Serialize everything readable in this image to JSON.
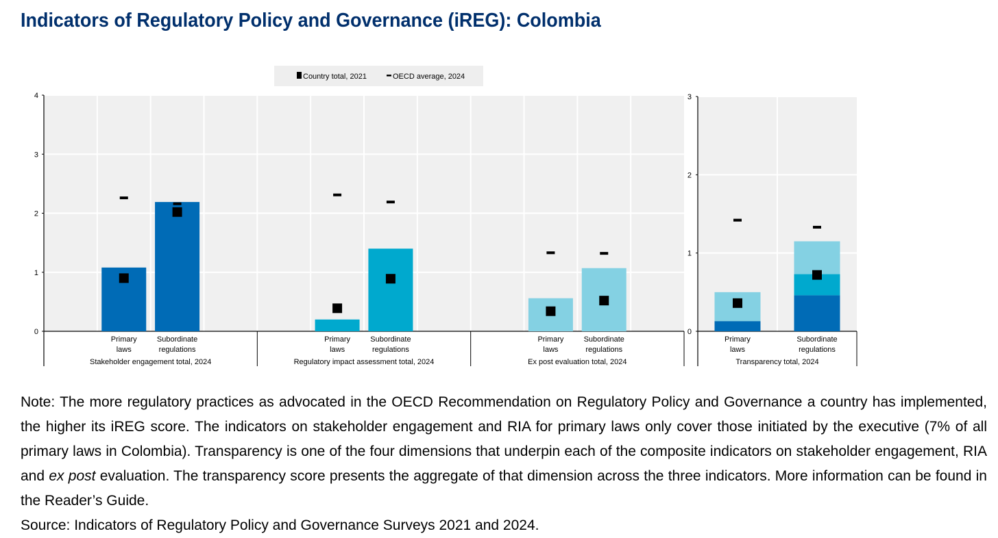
{
  "title": "Indicators of Regulatory Policy and Governance (iREG): Colombia",
  "note": {
    "part1": "Note: The more regulatory practices as advocated in the OECD Recommendation on Regulatory Policy and Governance a country has implemented, the higher its iREG score. The indicators on stakeholder engagement and RIA for primary laws only cover those initiated by the executive (7% of all primary laws in Colombia). Transparency is one of the four dimensions that underpin each of the composite indicators on stakeholder engagement, RIA and ",
    "italic": "ex post",
    "part2": " evaluation. The transparency score presents the aggregate of that dimension across the three indicators. More information can be found in the Reader’s Guide."
  },
  "source": "Source: Indicators of Regulatory Policy and Governance Surveys 2021 and 2024.",
  "colors": {
    "dark_blue": "#006BB6",
    "mid_blue": "#00A9CE",
    "light_blue": "#84D1E3",
    "plot_bg": "#F0F0F0",
    "marker": "#000000",
    "title": "#002F6C"
  },
  "chart_data": [
    {
      "type": "bar",
      "ylim": [
        0,
        4
      ],
      "yticks": [
        "0",
        "1",
        "2",
        "3",
        "4"
      ],
      "grid": true,
      "legend": {
        "placement": "top",
        "entries": [
          "Country total, 2021",
          "OECD average, 2024"
        ]
      },
      "groups": [
        {
          "label": "Stakeholder engagement total, 2024",
          "color": "#006BB6",
          "categories": [
            {
              "label": [
                "Primary",
                "laws"
              ],
              "value": 1.08,
              "country_2021": 0.9,
              "oecd_2024": 2.26
            },
            {
              "label": [
                "Subordinate",
                "regulations"
              ],
              "value": 2.19,
              "country_2021": 2.02,
              "oecd_2024": 2.16
            }
          ]
        },
        {
          "label": "Regulatory impact assessment total, 2024",
          "color": "#00A9CE",
          "categories": [
            {
              "label": [
                "Primary",
                "laws"
              ],
              "value": 0.2,
              "country_2021": 0.39,
              "oecd_2024": 2.31
            },
            {
              "label": [
                "Subordinate",
                "regulations"
              ],
              "value": 1.4,
              "country_2021": 0.89,
              "oecd_2024": 2.19
            }
          ]
        },
        {
          "label": "Ex post evaluation total, 2024",
          "color": "#84D1E3",
          "categories": [
            {
              "label": [
                "Primary",
                "laws"
              ],
              "value": 0.56,
              "country_2021": 0.34,
              "oecd_2024": 1.33
            },
            {
              "label": [
                "Subordinate",
                "regulations"
              ],
              "value": 1.07,
              "country_2021": 0.52,
              "oecd_2024": 1.32
            }
          ]
        }
      ]
    },
    {
      "type": "stacked bar",
      "ylim": [
        0,
        3
      ],
      "yticks": [
        "0",
        "1",
        "2",
        "3"
      ],
      "grid": true,
      "group_label": "Transparency total, 2024",
      "stack_colors": [
        "#006BB6",
        "#00A9CE",
        "#84D1E3"
      ],
      "categories": [
        {
          "label": [
            "Primary",
            "laws"
          ],
          "segments": [
            0.13,
            0.0,
            0.37
          ],
          "country_2021": 0.36,
          "oecd_2024": 1.42
        },
        {
          "label": [
            "Subordinate",
            "regulations"
          ],
          "segments": [
            0.46,
            0.27,
            0.42
          ],
          "country_2021": 0.72,
          "oecd_2024": 1.33
        }
      ]
    }
  ]
}
